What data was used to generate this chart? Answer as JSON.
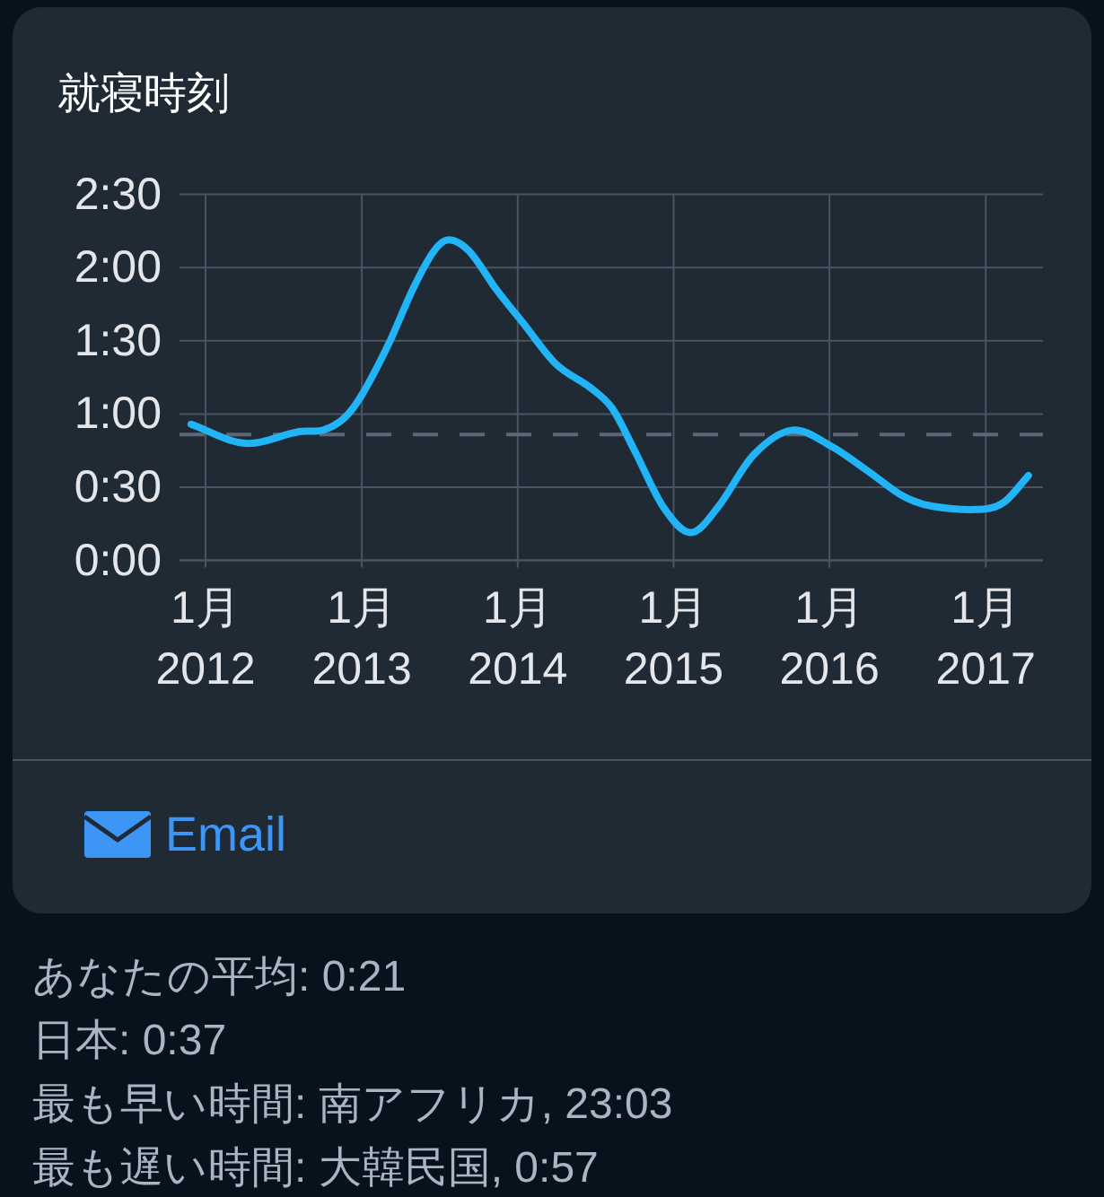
{
  "chart_data": {
    "type": "line",
    "title": "就寝時刻",
    "x": [
      "2011-11-28",
      "2012-04-03",
      "2012-08-07",
      "2012-10-02",
      "2012-11-20",
      "2013-01-01",
      "2013-03-05",
      "2013-04-30",
      "2013-06-18",
      "2013-07-23",
      "2013-09-10",
      "2013-11-12",
      "2014-01-14",
      "2014-04-01",
      "2014-06-20",
      "2014-08-10",
      "2014-09-30",
      "2014-12-09",
      "2015-02-10",
      "2015-04-14",
      "2015-07-07",
      "2015-10-06",
      "2016-01-05",
      "2016-04-05",
      "2016-06-21",
      "2016-08-30",
      "2016-12-27",
      "2017-02-14",
      "2017-04-11"
    ],
    "values": [
      0.93,
      0.8,
      0.88,
      0.89,
      0.97,
      1.13,
      1.48,
      1.85,
      2.11,
      2.19,
      2.11,
      1.85,
      1.62,
      1.34,
      1.18,
      1.04,
      0.76,
      0.36,
      0.19,
      0.36,
      0.72,
      0.89,
      0.78,
      0.6,
      0.44,
      0.37,
      0.35,
      0.4,
      0.58
    ],
    "color": "#21b4f6",
    "xlim": [
      "2011-11-01",
      "2017-05-15"
    ],
    "xticks": [
      {
        "value": "2012-01",
        "label": "1月\n2012"
      },
      {
        "value": "2013-01",
        "label": "1月\n2013"
      },
      {
        "value": "2014-01",
        "label": "1月\n2014"
      },
      {
        "value": "2015-01",
        "label": "1月\n2015"
      },
      {
        "value": "2016-01",
        "label": "1月\n2016"
      },
      {
        "value": "2017-01",
        "label": "1月\n2017"
      }
    ],
    "ylim": [
      0,
      2.5
    ],
    "yticks": [
      {
        "value": 0,
        "label": "0:00"
      },
      {
        "value": 0.5,
        "label": "0:30"
      },
      {
        "value": 1,
        "label": "1:00"
      },
      {
        "value": 1.5,
        "label": "1:30"
      },
      {
        "value": 2,
        "label": "2:00"
      },
      {
        "value": 2.5,
        "label": "2:30"
      }
    ],
    "grid": true,
    "ref_lines": [
      {
        "axis": "y",
        "value": 0.86,
        "color": "#5c6876",
        "line_style": "dashed"
      }
    ],
    "annotations": [
      "Email",
      "あなたの平均: 0:21",
      "日本: 0:37",
      "最も早い時間: 南アフリカ, 23:03",
      "最も遅い時間: 大韓民国, 0:57"
    ]
  }
}
